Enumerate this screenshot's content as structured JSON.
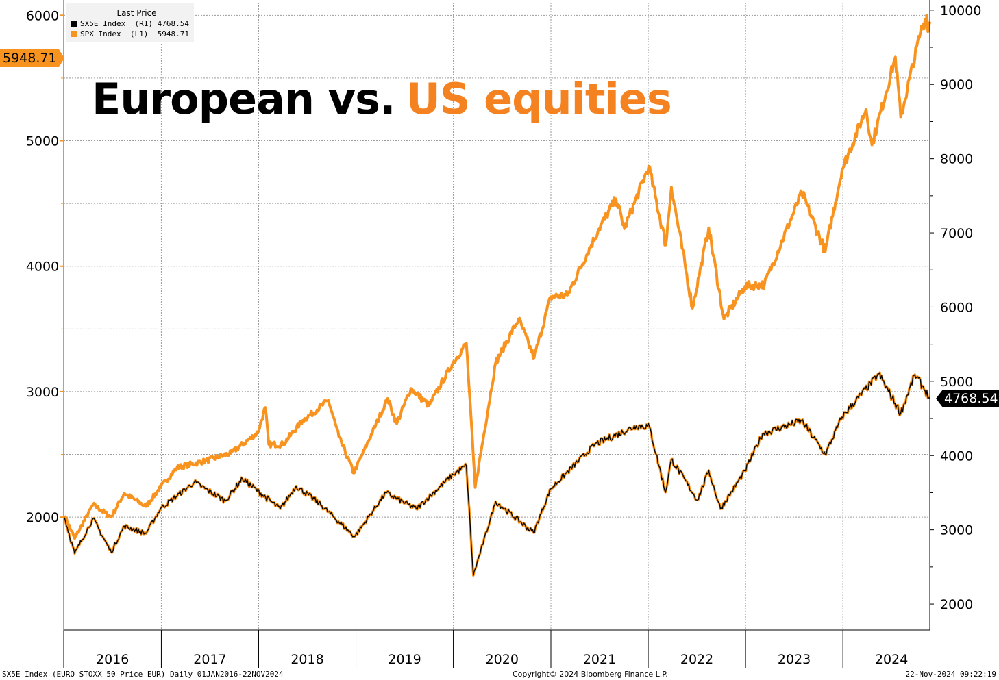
{
  "title": {
    "part1": "European vs.",
    "part2": "US equities"
  },
  "legend": {
    "title": "Last Price",
    "items": [
      {
        "label": "SX5E Index  (R1) 4768.54",
        "color": "#000000"
      },
      {
        "label": "SPX Index  (L1)  5948.71",
        "color": "#f7931e"
      }
    ]
  },
  "colors": {
    "spx": "#f7931e",
    "sx5e": "#000000",
    "title_accent": "#f58220",
    "grid": "#9b9b9b"
  },
  "last_values": {
    "spx": "5948.71",
    "sx5e": "4768.54"
  },
  "footer": {
    "left": "SX5E Index (EURO STOXX 50 Price EUR)  Daily 01JAN2016-22NOV2024",
    "center": "Copyright© 2024 Bloomberg Finance L.P.",
    "right": "22-Nov-2024 09:22:19"
  },
  "chart_data": {
    "type": "line",
    "x_range": [
      "2016-01-01",
      "2024-11-22"
    ],
    "x_tick_labels": [
      "2016",
      "2017",
      "2018",
      "2019",
      "2020",
      "2021",
      "2022",
      "2023",
      "2024"
    ],
    "left_axis": {
      "ticks": [
        2000,
        3000,
        4000,
        5000,
        6000
      ],
      "ylim": [
        1100,
        6100
      ]
    },
    "right_axis": {
      "ticks": [
        2000,
        3000,
        4000,
        5000,
        6000,
        7000,
        8000,
        9000,
        10000
      ],
      "ylim": [
        1650,
        10100
      ]
    },
    "grid": true,
    "legend_position": "top-left",
    "series": [
      {
        "name": "SPX Index",
        "axis": "left",
        "points": [
          [
            "2016-01-04",
            2012
          ],
          [
            "2016-02-11",
            1830
          ],
          [
            "2016-04-20",
            2100
          ],
          [
            "2016-06-27",
            2000
          ],
          [
            "2016-08-15",
            2190
          ],
          [
            "2016-11-04",
            2085
          ],
          [
            "2016-12-30",
            2240
          ],
          [
            "2017-03-01",
            2395
          ],
          [
            "2017-06-19",
            2450
          ],
          [
            "2017-09-20",
            2510
          ],
          [
            "2017-12-29",
            2675
          ],
          [
            "2018-01-26",
            2873
          ],
          [
            "2018-02-08",
            2580
          ],
          [
            "2018-04-02",
            2580
          ],
          [
            "2018-06-15",
            2770
          ],
          [
            "2018-09-20",
            2930
          ],
          [
            "2018-10-29",
            2640
          ],
          [
            "2018-12-24",
            2351
          ],
          [
            "2019-04-30",
            2945
          ],
          [
            "2019-06-03",
            2745
          ],
          [
            "2019-07-26",
            3025
          ],
          [
            "2019-10-02",
            2890
          ],
          [
            "2019-12-31",
            3230
          ],
          [
            "2020-02-19",
            3386
          ],
          [
            "2020-03-23",
            2237
          ],
          [
            "2020-06-08",
            3232
          ],
          [
            "2020-09-02",
            3580
          ],
          [
            "2020-10-30",
            3270
          ],
          [
            "2020-12-31",
            3756
          ],
          [
            "2021-03-04",
            3770
          ],
          [
            "2021-06-30",
            4297
          ],
          [
            "2021-09-02",
            4537
          ],
          [
            "2021-10-04",
            4300
          ],
          [
            "2022-01-03",
            4796
          ],
          [
            "2022-03-08",
            4170
          ],
          [
            "2022-03-29",
            4630
          ],
          [
            "2022-06-16",
            3666
          ],
          [
            "2022-08-16",
            4305
          ],
          [
            "2022-10-12",
            3577
          ],
          [
            "2022-12-30",
            3840
          ],
          [
            "2023-03-13",
            3855
          ],
          [
            "2023-07-31",
            4589
          ],
          [
            "2023-10-27",
            4117
          ],
          [
            "2023-12-29",
            4770
          ],
          [
            "2024-03-28",
            5254
          ],
          [
            "2024-04-19",
            4967
          ],
          [
            "2024-07-16",
            5667
          ],
          [
            "2024-08-05",
            5186
          ],
          [
            "2024-10-18",
            5865
          ],
          [
            "2024-11-11",
            6001
          ],
          [
            "2024-11-15",
            5870
          ],
          [
            "2024-11-22",
            5948.71
          ]
        ]
      },
      {
        "name": "SX5E Index",
        "axis": "right",
        "points": [
          [
            "2016-01-04",
            3165
          ],
          [
            "2016-02-11",
            2680
          ],
          [
            "2016-04-20",
            3150
          ],
          [
            "2016-06-27",
            2697
          ],
          [
            "2016-08-15",
            3050
          ],
          [
            "2016-11-04",
            2950
          ],
          [
            "2016-12-30",
            3290
          ],
          [
            "2017-05-05",
            3640
          ],
          [
            "2017-08-29",
            3390
          ],
          [
            "2017-11-01",
            3690
          ],
          [
            "2018-03-23",
            3280
          ],
          [
            "2018-05-22",
            3590
          ],
          [
            "2018-08-15",
            3360
          ],
          [
            "2018-12-27",
            2908
          ],
          [
            "2019-04-23",
            3500
          ],
          [
            "2019-08-15",
            3280
          ],
          [
            "2019-12-31",
            3745
          ],
          [
            "2020-02-19",
            3865
          ],
          [
            "2020-03-16",
            2386
          ],
          [
            "2020-06-08",
            3380
          ],
          [
            "2020-10-28",
            2960
          ],
          [
            "2020-12-31",
            3550
          ],
          [
            "2021-06-15",
            4150
          ],
          [
            "2021-11-17",
            4400
          ],
          [
            "2022-01-05",
            4392
          ],
          [
            "2022-03-07",
            3505
          ],
          [
            "2022-03-29",
            3950
          ],
          [
            "2022-07-05",
            3400
          ],
          [
            "2022-08-16",
            3800
          ],
          [
            "2022-09-29",
            3280
          ],
          [
            "2022-12-30",
            3794
          ],
          [
            "2023-03-06",
            4294
          ],
          [
            "2023-07-31",
            4470
          ],
          [
            "2023-10-27",
            4015
          ],
          [
            "2023-12-29",
            4521
          ],
          [
            "2024-05-15",
            5100
          ],
          [
            "2024-08-05",
            4570
          ],
          [
            "2024-09-27",
            5090
          ],
          [
            "2024-10-25",
            4940
          ],
          [
            "2024-11-22",
            4768.54
          ]
        ]
      }
    ]
  }
}
